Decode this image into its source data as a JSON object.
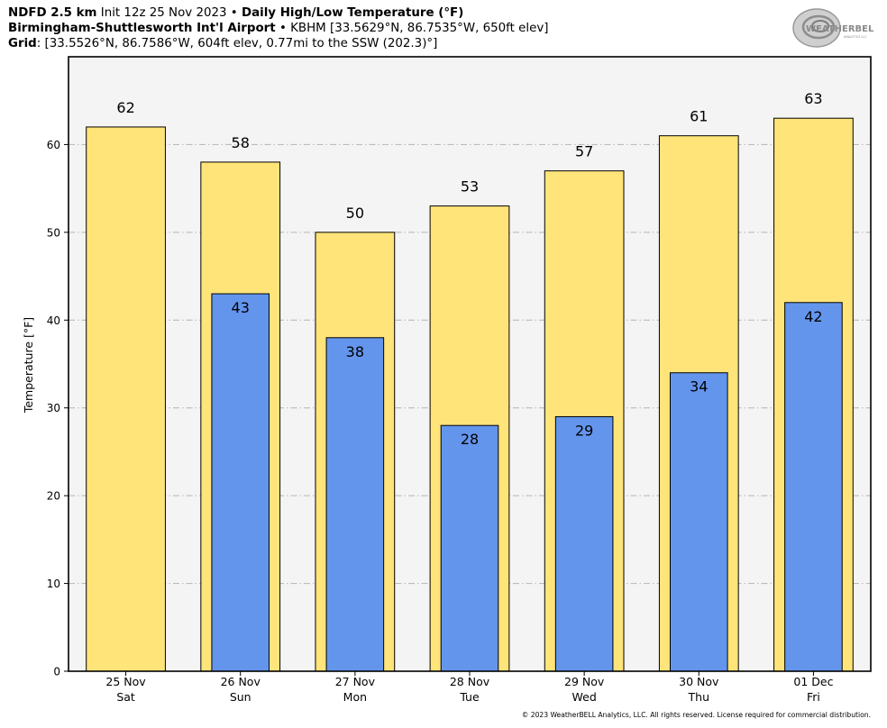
{
  "header": {
    "model": "NDFD 2.5 km",
    "init": "Init 12z 25 Nov 2023",
    "sep": "•",
    "product": "Daily High/Low Temperature (°F)",
    "station_name": "Birmingham-Shuttlesworth Int'l Airport",
    "station_info": "KBHM [33.5629°N, 86.7535°W, 650ft elev]",
    "grid_label": "Grid",
    "grid_info": ": [33.5526°N, 86.7586°W, 604ft elev, 0.77mi to the SSW (202.3)°]"
  },
  "logo": {
    "line1": "WEATHERBELL",
    "line2": "ANALYTICS LLC"
  },
  "copyright": "© 2023 WeatherBELL Analytics, LLC. All rights reserved. License required for commercial distribution.",
  "colors": {
    "high": "#ffe47a",
    "low": "#6495ed",
    "plot_bg": "#f5f4f5",
    "grid": "#b4b4b4"
  },
  "chart_data": {
    "type": "bar",
    "ylabel": "Temperature [°F]",
    "ylim": [
      0,
      70
    ],
    "yticks": [
      0,
      10,
      20,
      30,
      40,
      50,
      60
    ],
    "grid": true,
    "categories": [
      {
        "date": "25 Nov",
        "day": "Sat"
      },
      {
        "date": "26 Nov",
        "day": "Sun"
      },
      {
        "date": "27 Nov",
        "day": "Mon"
      },
      {
        "date": "28 Nov",
        "day": "Tue"
      },
      {
        "date": "29 Nov",
        "day": "Wed"
      },
      {
        "date": "30 Nov",
        "day": "Thu"
      },
      {
        "date": "01 Dec",
        "day": "Fri"
      }
    ],
    "series": [
      {
        "key": "high",
        "values": [
          62,
          58,
          50,
          53,
          57,
          61,
          63
        ]
      },
      {
        "key": "low",
        "values": [
          null,
          43,
          38,
          28,
          29,
          34,
          42
        ]
      }
    ]
  }
}
